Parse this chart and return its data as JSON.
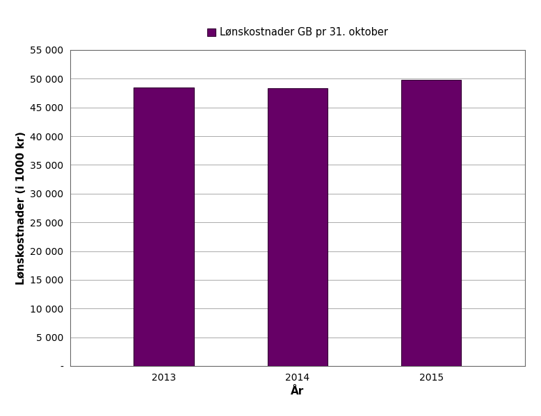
{
  "categories": [
    "2013",
    "2014",
    "2015"
  ],
  "values": [
    48500,
    48400,
    49800
  ],
  "bar_color": "#660066",
  "bar_edge_color": "#330033",
  "title": "Lønskostnader GB pr 31. oktober",
  "xlabel": "År",
  "ylabel": "Lønskostnader (i 1000 kr)",
  "ylim": [
    0,
    55000
  ],
  "yticks": [
    0,
    5000,
    10000,
    15000,
    20000,
    25000,
    30000,
    35000,
    40000,
    45000,
    50000,
    55000
  ],
  "ytick_labels": [
    "-",
    "5 000",
    "10 000",
    "15 000",
    "20 000",
    "25 000",
    "30 000",
    "35 000",
    "40 000",
    "45 000",
    "50 000",
    "55 000"
  ],
  "legend_label": "Lønskostnader GB pr 31. oktober",
  "background_color": "#ffffff",
  "plot_bg_color": "#ffffff",
  "grid_color": "#aaaaaa",
  "spine_color": "#666666",
  "bar_width": 0.45,
  "title_fontsize": 11,
  "axis_label_fontsize": 11,
  "tick_fontsize": 10,
  "legend_fontsize": 10.5
}
